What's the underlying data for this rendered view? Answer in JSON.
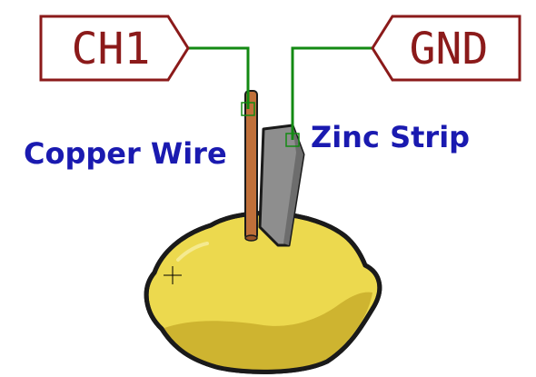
{
  "labels": {
    "ch1": "CH1",
    "gnd": "GND"
  },
  "annotations": {
    "copper": "Copper Wire",
    "zinc": "Zinc Strip"
  },
  "colors": {
    "label_border": "#8b1a1a",
    "label_text": "#8b1a1a",
    "wire": "#138a13",
    "annotation_text": "#1a1ab0",
    "lemon_fill": "#ecd94e",
    "lemon_shadow": "#c9ad2c",
    "lemon_outline": "#1a1a1a",
    "copper": "#c0703a",
    "zinc": "#8e8e8e"
  }
}
